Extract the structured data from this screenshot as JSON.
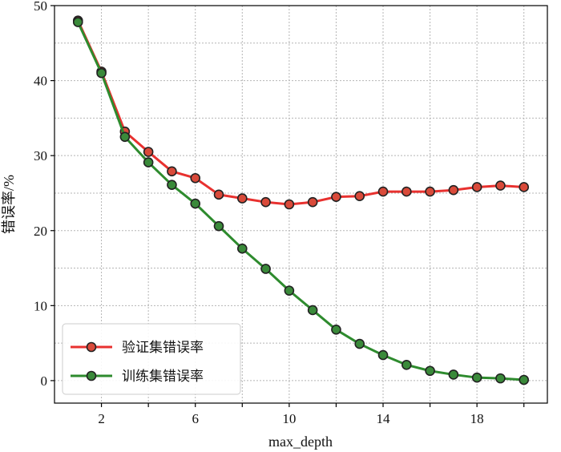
{
  "chart_data": {
    "type": "line",
    "xlabel": "max_depth",
    "ylabel": "错误率/%",
    "xlim": [
      0,
      21
    ],
    "ylim": [
      -3,
      50
    ],
    "xticks": [
      2,
      6,
      10,
      14,
      18
    ],
    "yticks": [
      0,
      10,
      20,
      30,
      40,
      50
    ],
    "grid": true,
    "legend_position": "lower-left",
    "x": [
      1,
      2,
      3,
      4,
      5,
      6,
      7,
      8,
      9,
      10,
      11,
      12,
      13,
      14,
      15,
      16,
      17,
      18,
      19,
      20
    ],
    "series": [
      {
        "name": "验证集错误率",
        "color": "#e8312f",
        "marker_color": "#d94a3a",
        "values": [
          48.0,
          41.2,
          33.2,
          30.5,
          27.9,
          27.0,
          24.8,
          24.3,
          23.8,
          23.5,
          23.8,
          24.5,
          24.6,
          25.2,
          25.2,
          25.2,
          25.4,
          25.8,
          26.0,
          25.8
        ]
      },
      {
        "name": "训练集错误率",
        "color": "#2e8b2e",
        "marker_color": "#3a8a3a",
        "values": [
          47.8,
          41.0,
          32.5,
          29.1,
          26.1,
          23.6,
          20.6,
          17.6,
          14.9,
          12.0,
          9.4,
          6.8,
          4.9,
          3.4,
          2.1,
          1.3,
          0.8,
          0.4,
          0.3,
          0.1
        ]
      }
    ]
  }
}
